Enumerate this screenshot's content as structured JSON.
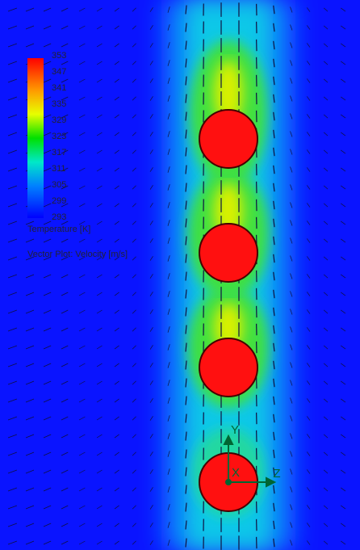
{
  "legend": {
    "ticks": [
      353,
      347,
      341,
      335,
      329,
      323,
      317,
      311,
      305,
      299,
      293
    ],
    "title": "Temperature [K]",
    "subtitle": "Vector Plot: Velocity [m/s]"
  },
  "triad": {
    "y": "Y",
    "x": "X",
    "z": "Z"
  }
}
